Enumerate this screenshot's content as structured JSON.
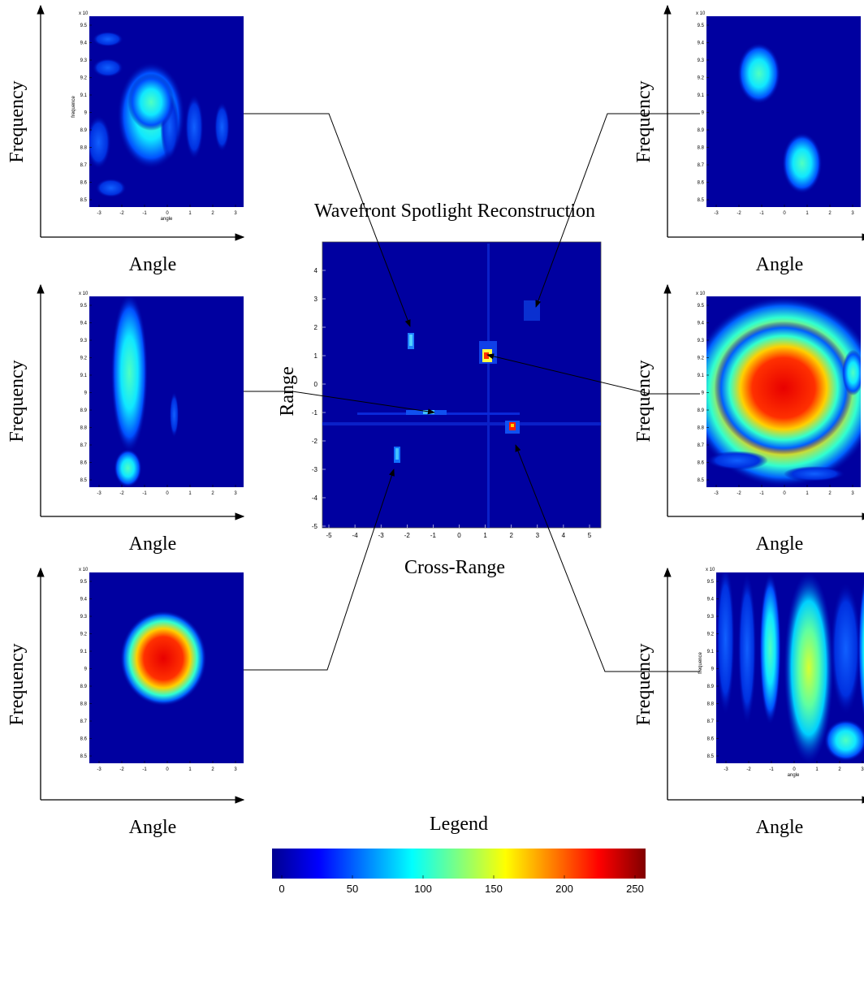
{
  "main": {
    "title": "Wavefront Spotlight Reconstruction",
    "xlabel": "Cross-Range",
    "ylabel": "Range",
    "xticks": [
      -5,
      -4,
      -3,
      -2,
      -1,
      0,
      1,
      2,
      3,
      4,
      5
    ],
    "yticks": [
      4,
      3,
      2,
      1,
      0,
      -1,
      -2,
      -3,
      -4,
      -5
    ]
  },
  "panels": [
    {
      "ylabel": "Frequency",
      "xlabel": "Angle",
      "exponent": "x 10",
      "inner_xlabel": "angle",
      "inner_ylabel": "frequence",
      "xticks": [
        -3,
        -2,
        -1,
        0,
        1,
        2,
        3
      ],
      "yticks": [
        9.5,
        9.4,
        9.3,
        9.2,
        9.1,
        9,
        8.9,
        8.8,
        8.7,
        8.6,
        8.5
      ]
    },
    {
      "ylabel": "Frequency",
      "xlabel": "Angle",
      "exponent": "x 10",
      "xticks": [
        -3,
        -2,
        -1,
        0,
        1,
        2,
        3
      ],
      "yticks": [
        9.5,
        9.4,
        9.3,
        9.2,
        9.1,
        9,
        8.9,
        8.8,
        8.7,
        8.6,
        8.5
      ]
    },
    {
      "ylabel": "Frequency",
      "xlabel": "Angle",
      "exponent": "x 10",
      "xticks": [
        -3,
        -2,
        -1,
        0,
        1,
        2,
        3
      ],
      "yticks": [
        9.5,
        9.4,
        9.3,
        9.2,
        9.1,
        9,
        8.9,
        8.8,
        8.7,
        8.6,
        8.5
      ]
    },
    {
      "ylabel": "Frequency",
      "xlabel": "Angle",
      "exponent": "x 10",
      "xticks": [
        -3,
        -2,
        -1,
        0,
        1,
        2,
        3
      ],
      "yticks": [
        9.5,
        9.4,
        9.3,
        9.2,
        9.1,
        9,
        8.9,
        8.8,
        8.7,
        8.6,
        8.5
      ]
    },
    {
      "ylabel": "Frequency",
      "xlabel": "Angle",
      "exponent": "x 10",
      "xticks": [
        -3,
        -2,
        -1,
        0,
        1,
        2,
        3
      ],
      "yticks": [
        9.5,
        9.4,
        9.3,
        9.2,
        9.1,
        9,
        8.9,
        8.8,
        8.7,
        8.6,
        8.5
      ]
    },
    {
      "ylabel": "Frequency",
      "xlabel": "Angle",
      "exponent": "x 10",
      "inner_xlabel": "angle",
      "inner_ylabel": "frequence",
      "xticks": [
        -3,
        -2,
        -1,
        0,
        1,
        2,
        3
      ],
      "yticks": [
        9.5,
        9.4,
        9.3,
        9.2,
        9.1,
        9,
        8.9,
        8.8,
        8.7,
        8.6,
        8.5
      ]
    }
  ],
  "legend": {
    "title": "Legend",
    "ticks": [
      0,
      50,
      100,
      150,
      200,
      250
    ]
  }
}
